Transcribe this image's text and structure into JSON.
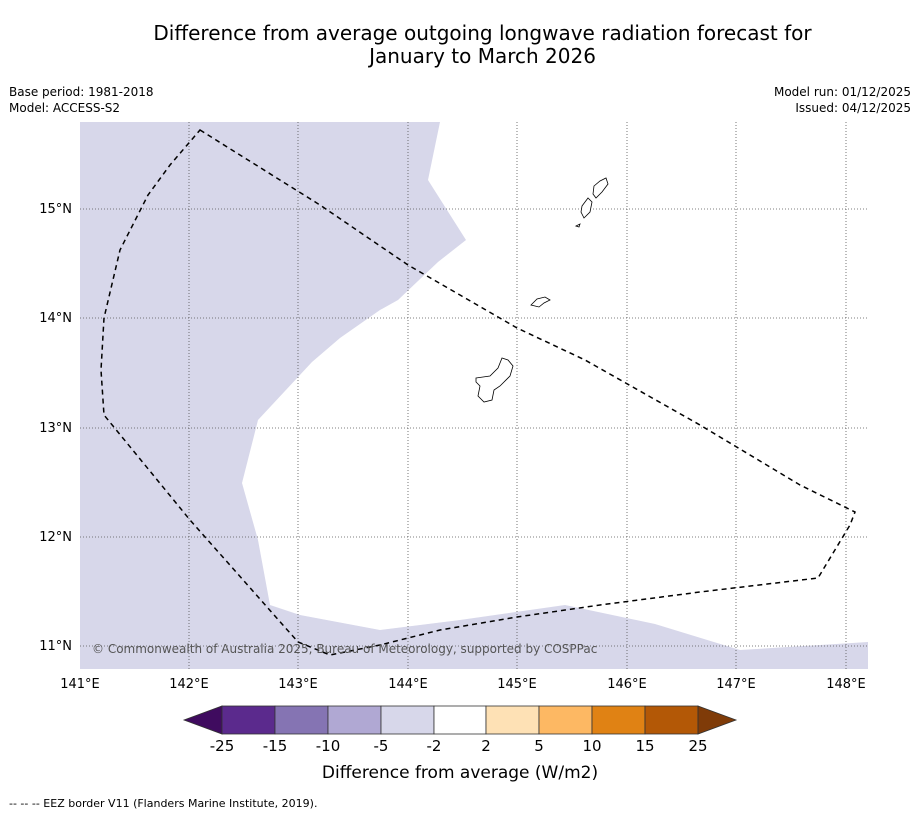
{
  "title_line1": "Difference from average outgoing longwave radiation forecast for",
  "title_line2": "January to March 2026",
  "base_period": "Base period: 1981-2018",
  "model": "Model: ACCESS-S2",
  "model_run": "Model run: 01/12/2025",
  "issued": "Issued: 04/12/2025",
  "copyright": "© Commonwealth of Australia 2025, Bureau of Meteorology, supported by COSPPac",
  "footnote": "--  --  -- EEZ border V11 (Flanders Marine Institute, 2019).",
  "lon_labels": [
    "141°E",
    "142°E",
    "143°E",
    "144°E",
    "145°E",
    "146°E",
    "147°E",
    "148°E"
  ],
  "lat_labels": [
    "15°N",
    "14°N",
    "13°N",
    "12°N",
    "11°N"
  ],
  "colorbar": {
    "label": "Difference from average (W/m2)",
    "ticks": [
      "-25",
      "-15",
      "-10",
      "-5",
      "-2",
      "2",
      "5",
      "10",
      "15",
      "25"
    ],
    "colors": [
      "#3f0b5f",
      "#5b2a8d",
      "#8574b3",
      "#b0a8d3",
      "#d7d7ea",
      "#ffffff",
      "#fee1b5",
      "#fdb863",
      "#e08214",
      "#b35806",
      "#7f3b08"
    ]
  },
  "map_colors": {
    "ocean_anomaly": "#d7d7ea",
    "neutral": "#ffffff",
    "gridline": "#555555"
  }
}
